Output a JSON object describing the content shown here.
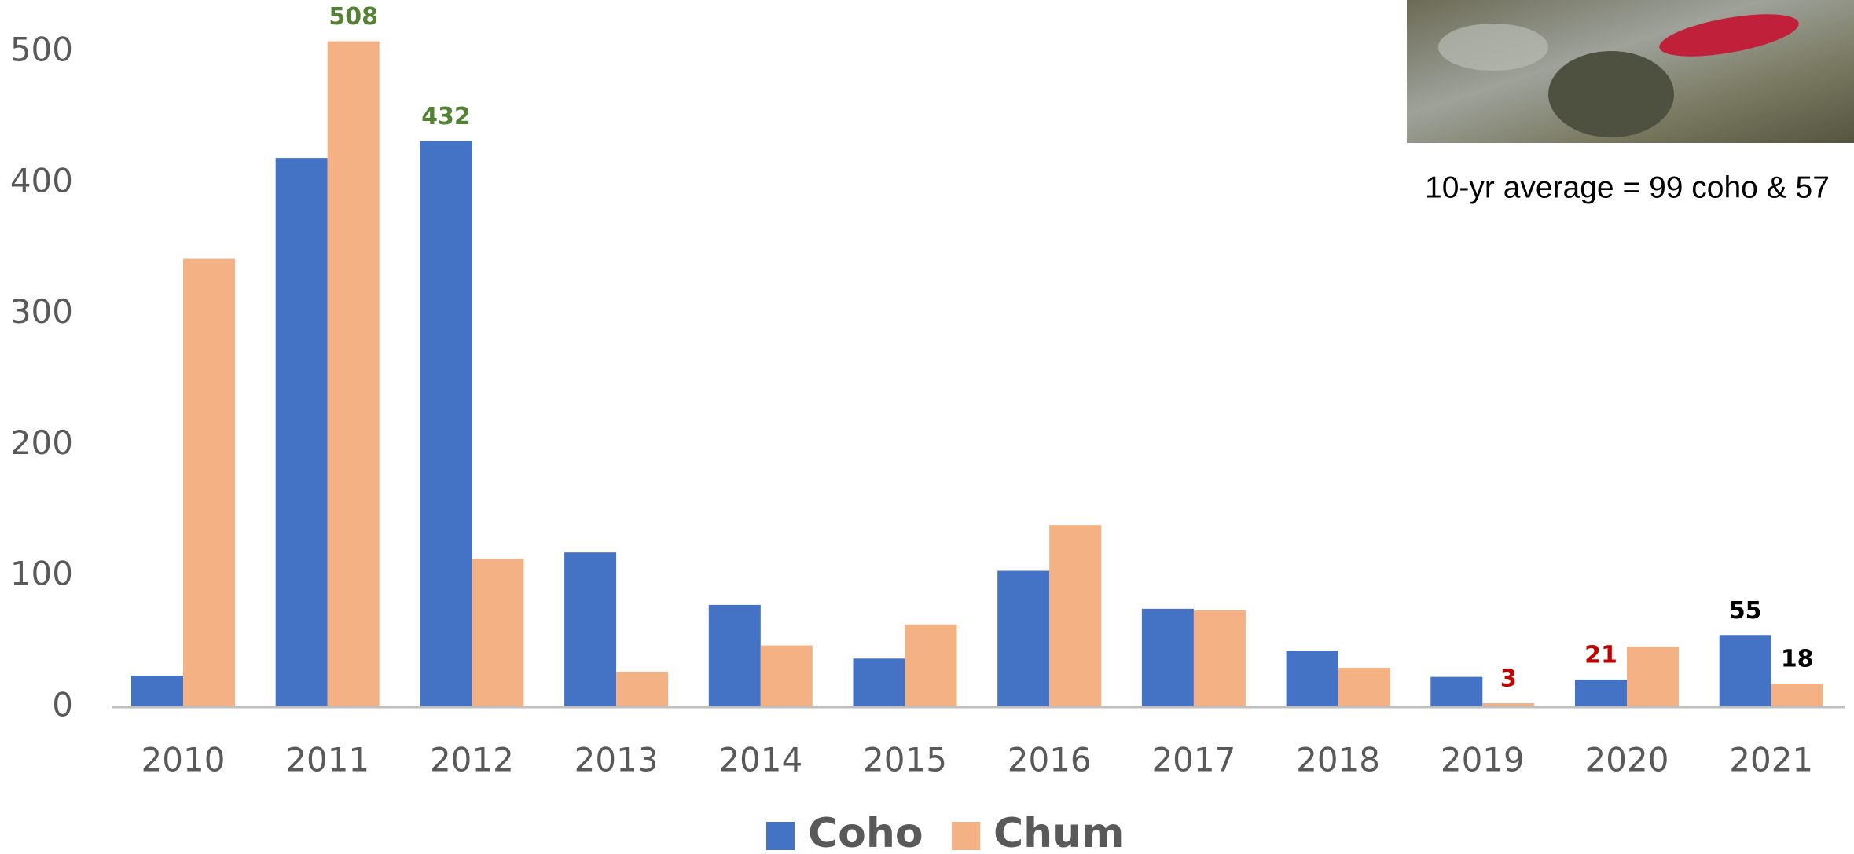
{
  "chart_data": {
    "type": "bar",
    "categories": [
      "2010",
      "2011",
      "2012",
      "2013",
      "2014",
      "2015",
      "2016",
      "2017",
      "2018",
      "2019",
      "2020",
      "2021"
    ],
    "series": [
      {
        "name": "Coho",
        "color": "#4472c4",
        "values": [
          24,
          419,
          432,
          118,
          78,
          37,
          104,
          75,
          43,
          23,
          21,
          55
        ],
        "value_labels": [
          null,
          null,
          "432",
          null,
          null,
          null,
          null,
          null,
          null,
          null,
          "21",
          "55"
        ],
        "value_label_colors": [
          null,
          null,
          "#548235",
          null,
          null,
          null,
          null,
          null,
          null,
          null,
          "#c00000",
          "#000000"
        ]
      },
      {
        "name": "Chum",
        "color": "#f4b183",
        "values": [
          342,
          508,
          113,
          27,
          47,
          63,
          139,
          74,
          30,
          3,
          46,
          18
        ],
        "value_labels": [
          null,
          "508",
          null,
          null,
          null,
          null,
          null,
          null,
          null,
          "3",
          null,
          "18"
        ],
        "value_label_colors": [
          null,
          "#548235",
          null,
          null,
          null,
          null,
          null,
          null,
          null,
          "#c00000",
          null,
          "#000000"
        ]
      }
    ],
    "annotation": "10-yr average = 99 coho & 57",
    "ylim": [
      0,
      500
    ],
    "yticks": [
      0,
      100,
      200,
      300,
      400,
      500
    ],
    "legend": "bottom",
    "grid": false
  }
}
